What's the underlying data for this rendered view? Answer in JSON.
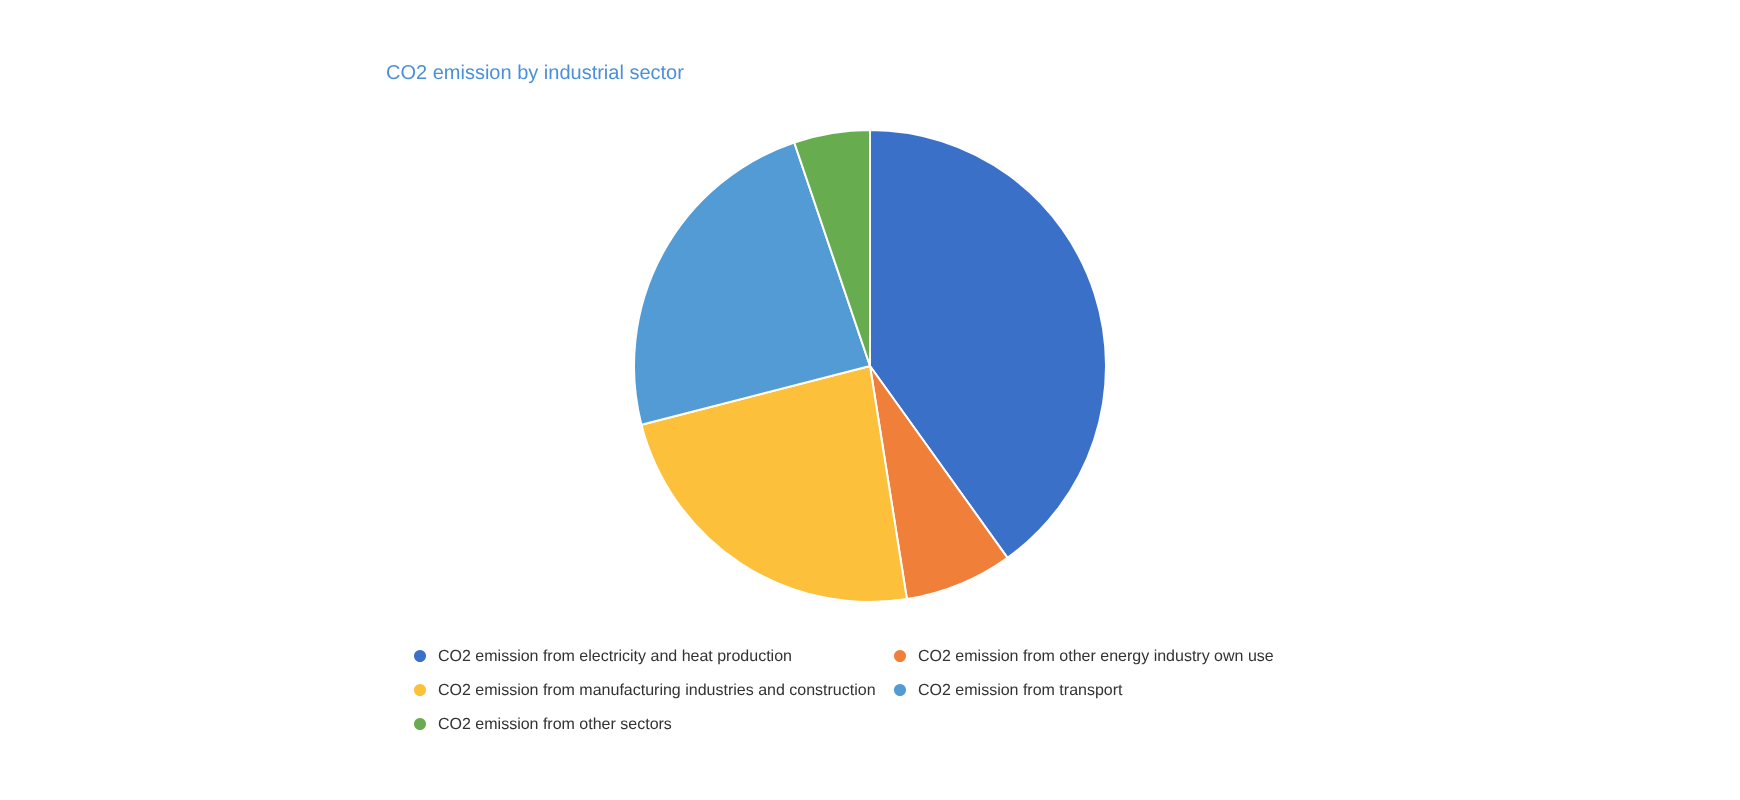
{
  "chart_data": {
    "type": "pie",
    "title": "CO2 emission by industrial sector",
    "categories": [
      "CO2 emission from electricity and heat production",
      "CO2 emission from other energy industry own use",
      "CO2 emission from manufacturing industries and construction",
      "CO2 emission from transport",
      "CO2 emission from other sectors"
    ],
    "values": [
      40.1,
      7.4,
      23.5,
      23.8,
      5.2
    ],
    "colors": [
      "#3b70c9",
      "#f07f3a",
      "#fdc03a",
      "#529bd5",
      "#67ad4f"
    ],
    "legend": "bottom"
  }
}
